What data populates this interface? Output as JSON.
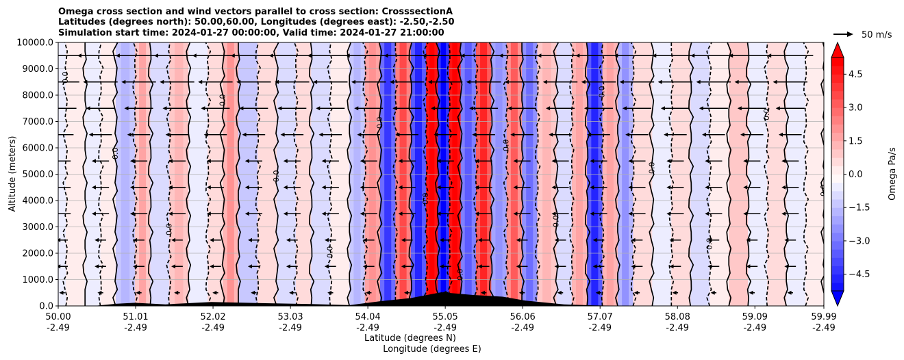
{
  "chart_data": {
    "type": "heatmap",
    "title_lines": [
      "Omega cross section and wind vectors parallel to cross section: CrosssectionA",
      "Latitudes (degrees north): 50.00,60.00, Longitudes (degrees east): -2.50,-2.50",
      "Simulation start time: 2024-01-27 00:00:00, Valid time: 2024-01-27 21:00:00"
    ],
    "ylabel": "Altitude (meters)",
    "xlabel_lines": [
      "Latitude (degrees N)",
      "Longitude (degrees E)"
    ],
    "ylim": [
      0,
      10000
    ],
    "xlim": [
      50.0,
      59.99
    ],
    "yticks": [
      {
        "value": 0,
        "label": "0.0"
      },
      {
        "value": 1000,
        "label": "1000.0"
      },
      {
        "value": 2000,
        "label": "2000.0"
      },
      {
        "value": 3000,
        "label": "3000.0"
      },
      {
        "value": 4000,
        "label": "4000.0"
      },
      {
        "value": 5000,
        "label": "5000.0"
      },
      {
        "value": 6000,
        "label": "6000.0"
      },
      {
        "value": 7000,
        "label": "7000.0"
      },
      {
        "value": 8000,
        "label": "8000.0"
      },
      {
        "value": 9000,
        "label": "9000.0"
      },
      {
        "value": 10000,
        "label": "10000.0"
      }
    ],
    "xticks": [
      {
        "value": 50.0,
        "lat": "50.00",
        "lon": "-2.49"
      },
      {
        "value": 51.01,
        "lat": "51.01",
        "lon": "-2.49"
      },
      {
        "value": 52.02,
        "lat": "52.02",
        "lon": "-2.49"
      },
      {
        "value": 53.03,
        "lat": "53.03",
        "lon": "-2.49"
      },
      {
        "value": 54.04,
        "lat": "54.04",
        "lon": "-2.49"
      },
      {
        "value": 55.05,
        "lat": "55.05",
        "lon": "-2.49"
      },
      {
        "value": 56.06,
        "lat": "56.06",
        "lon": "-2.49"
      },
      {
        "value": 57.07,
        "lat": "57.07",
        "lon": "-2.49"
      },
      {
        "value": 58.08,
        "lat": "58.08",
        "lon": "-2.49"
      },
      {
        "value": 59.09,
        "lat": "59.09",
        "lon": "-2.49"
      },
      {
        "value": 59.99,
        "lat": "59.99",
        "lon": "-2.49"
      }
    ],
    "grid": true,
    "colorbar": {
      "label": "Omega Pa/s",
      "range": [
        -5.25,
        5.25
      ],
      "step": 0.375,
      "ticks": [
        {
          "value": 4.5,
          "label": "4.5"
        },
        {
          "value": 3.0,
          "label": "3.0"
        },
        {
          "value": 1.5,
          "label": "1.5"
        },
        {
          "value": 0.0,
          "label": "0.0"
        },
        {
          "value": -1.5,
          "label": "−1.5"
        },
        {
          "value": -3.0,
          "label": "−3.0"
        },
        {
          "value": -4.5,
          "label": "−4.5"
        }
      ],
      "extend": "both",
      "neg_color": "#0000ff",
      "pos_color": "#ff0000"
    },
    "quiver_key": {
      "label": "50 m/s",
      "speed": 50
    },
    "omega_bands": [
      {
        "lat0": 50.0,
        "lat1": 50.1,
        "omega": -0.4
      },
      {
        "lat0": 50.1,
        "lat1": 50.35,
        "omega": 0.3
      },
      {
        "lat0": 50.35,
        "lat1": 50.55,
        "omega": -0.2
      },
      {
        "lat0": 50.55,
        "lat1": 50.75,
        "omega": 0.5
      },
      {
        "lat0": 50.75,
        "lat1": 51.0,
        "omega": -1.1
      },
      {
        "lat0": 51.0,
        "lat1": 51.2,
        "omega": 1.3
      },
      {
        "lat0": 51.2,
        "lat1": 51.45,
        "omega": -0.7
      },
      {
        "lat0": 51.45,
        "lat1": 51.7,
        "omega": 1.1
      },
      {
        "lat0": 51.7,
        "lat1": 51.95,
        "omega": -0.3
      },
      {
        "lat0": 51.95,
        "lat1": 52.15,
        "omega": 0.9
      },
      {
        "lat0": 52.15,
        "lat1": 52.35,
        "omega": 1.6
      },
      {
        "lat0": 52.35,
        "lat1": 52.6,
        "omega": -1.0
      },
      {
        "lat0": 52.6,
        "lat1": 52.85,
        "omega": 0.6
      },
      {
        "lat0": 52.85,
        "lat1": 53.1,
        "omega": -0.9
      },
      {
        "lat0": 53.1,
        "lat1": 53.3,
        "omega": 0.8
      },
      {
        "lat0": 53.3,
        "lat1": 53.55,
        "omega": -0.6
      },
      {
        "lat0": 53.55,
        "lat1": 53.8,
        "omega": 0.4
      },
      {
        "lat0": 53.8,
        "lat1": 54.0,
        "omega": -1.2
      },
      {
        "lat0": 54.0,
        "lat1": 54.2,
        "omega": 1.8
      },
      {
        "lat0": 54.2,
        "lat1": 54.4,
        "omega": -3.0
      },
      {
        "lat0": 54.4,
        "lat1": 54.6,
        "omega": 2.8
      },
      {
        "lat0": 54.6,
        "lat1": 54.8,
        "omega": -3.4
      },
      {
        "lat0": 54.8,
        "lat1": 54.95,
        "omega": 4.8
      },
      {
        "lat0": 54.95,
        "lat1": 55.1,
        "omega": -4.0
      },
      {
        "lat0": 55.1,
        "lat1": 55.25,
        "omega": 5.0
      },
      {
        "lat0": 55.25,
        "lat1": 55.45,
        "omega": -2.6
      },
      {
        "lat0": 55.45,
        "lat1": 55.65,
        "omega": 3.2
      },
      {
        "lat0": 55.65,
        "lat1": 55.85,
        "omega": -1.8
      },
      {
        "lat0": 55.85,
        "lat1": 56.05,
        "omega": 2.4
      },
      {
        "lat0": 56.05,
        "lat1": 56.25,
        "omega": -2.2
      },
      {
        "lat0": 56.25,
        "lat1": 56.5,
        "omega": 1.2
      },
      {
        "lat0": 56.5,
        "lat1": 56.7,
        "omega": -0.8
      },
      {
        "lat0": 56.7,
        "lat1": 56.9,
        "omega": 1.5
      },
      {
        "lat0": 56.9,
        "lat1": 57.1,
        "omega": -3.2
      },
      {
        "lat0": 57.1,
        "lat1": 57.3,
        "omega": 1.4
      },
      {
        "lat0": 57.3,
        "lat1": 57.5,
        "omega": -1.6
      },
      {
        "lat0": 57.5,
        "lat1": 57.75,
        "omega": 0.9
      },
      {
        "lat0": 57.75,
        "lat1": 58.0,
        "omega": -0.5
      },
      {
        "lat0": 58.0,
        "lat1": 58.25,
        "omega": 0.7
      },
      {
        "lat0": 58.25,
        "lat1": 58.5,
        "omega": -0.9
      },
      {
        "lat0": 58.5,
        "lat1": 58.75,
        "omega": 0.4
      },
      {
        "lat0": 58.75,
        "lat1": 59.0,
        "omega": 1.0
      },
      {
        "lat0": 59.0,
        "lat1": 59.25,
        "omega": -0.3
      },
      {
        "lat0": 59.25,
        "lat1": 59.5,
        "omega": 0.6
      },
      {
        "lat0": 59.5,
        "lat1": 59.75,
        "omega": -0.4
      },
      {
        "lat0": 59.75,
        "lat1": 59.99,
        "omega": 0.3
      }
    ],
    "contour_label": "0.0",
    "contour_labels_extra": [
      "1.0",
      "-1.0",
      "2.0",
      "-2.0"
    ],
    "vectors": {
      "rows_alt": [
        500,
        1500,
        2500,
        3500,
        4500,
        5500,
        6500,
        7500,
        8500,
        9500
      ],
      "cols_lat": [
        50.05,
        50.55,
        51.05,
        51.55,
        52.05,
        52.55,
        53.05,
        53.55,
        54.05,
        54.55,
        55.05,
        55.55,
        56.05,
        56.55,
        57.05,
        57.55,
        58.05,
        58.55,
        59.05,
        59.55
      ],
      "u_ms": [
        -2,
        -4,
        -4,
        -6,
        -6,
        -6,
        -8,
        -10,
        -12,
        -16
      ]
    },
    "terrain": [
      {
        "lat": 50.0,
        "alt": 0
      },
      {
        "lat": 50.5,
        "alt": 10
      },
      {
        "lat": 50.75,
        "alt": 80
      },
      {
        "lat": 51.0,
        "alt": 120
      },
      {
        "lat": 51.4,
        "alt": 60
      },
      {
        "lat": 52.0,
        "alt": 150
      },
      {
        "lat": 52.6,
        "alt": 110
      },
      {
        "lat": 53.3,
        "alt": 70
      },
      {
        "lat": 53.8,
        "alt": 30
      },
      {
        "lat": 54.2,
        "alt": 180
      },
      {
        "lat": 54.6,
        "alt": 300
      },
      {
        "lat": 55.0,
        "alt": 520
      },
      {
        "lat": 55.4,
        "alt": 420
      },
      {
        "lat": 55.8,
        "alt": 350
      },
      {
        "lat": 56.1,
        "alt": 200
      },
      {
        "lat": 56.6,
        "alt": 60
      },
      {
        "lat": 57.0,
        "alt": 20
      },
      {
        "lat": 57.5,
        "alt": 0
      },
      {
        "lat": 59.99,
        "alt": 0
      }
    ]
  }
}
